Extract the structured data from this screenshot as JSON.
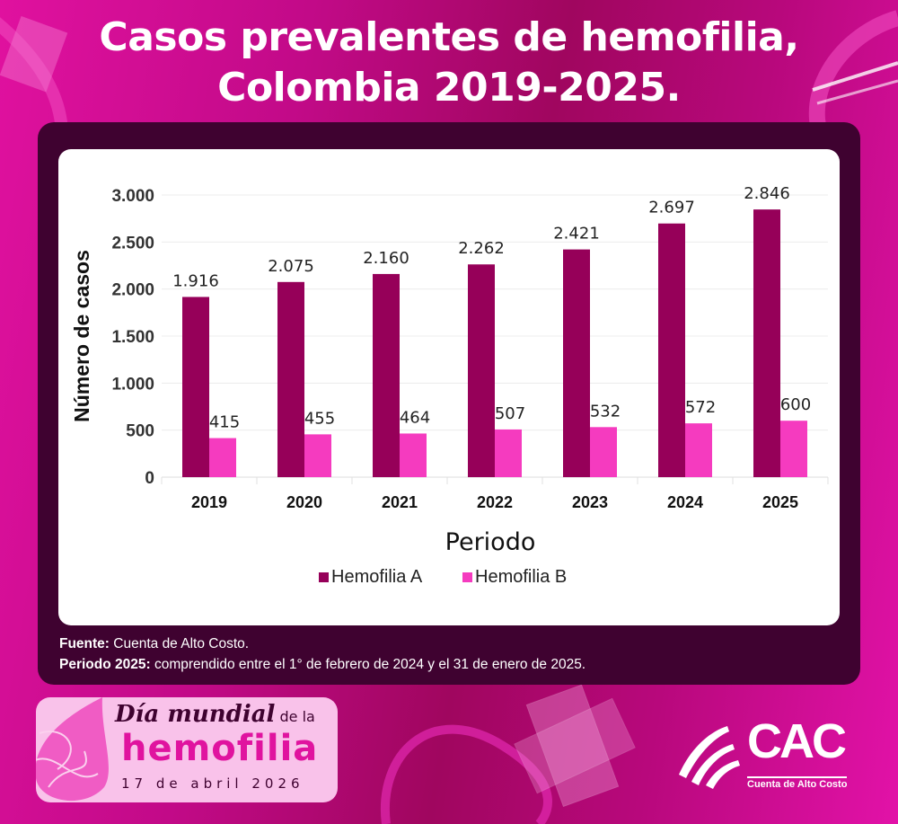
{
  "title_line1": "Casos prevalentes de hemofilia,",
  "title_line2": "Colombia 2019-2025.",
  "colors": {
    "hemofilia_a": "#960059",
    "hemofilia_b": "#f53bbf",
    "frame": "#3f0230"
  },
  "chart_data": {
    "type": "bar",
    "title": "Casos prevalentes de hemofilia, Colombia 2019-2025.",
    "xlabel": "Periodo",
    "ylabel": "Número de casos",
    "categories": [
      "2019",
      "2020",
      "2021",
      "2022",
      "2023",
      "2024",
      "2025"
    ],
    "series": [
      {
        "name": "Hemofilia A",
        "values": [
          1916,
          2075,
          2160,
          2262,
          2421,
          2697,
          2846
        ],
        "labels": [
          "1.916",
          "2.075",
          "2.160",
          "2.262",
          "2.421",
          "2.697",
          "2.846"
        ]
      },
      {
        "name": "Hemofilia B",
        "values": [
          415,
          455,
          464,
          507,
          532,
          572,
          600
        ],
        "labels": [
          "415",
          "455",
          "464",
          "507",
          "532",
          "572",
          "600"
        ]
      }
    ],
    "ylim": [
      0,
      3000
    ],
    "yticks": [
      0,
      500,
      1000,
      1500,
      2000,
      2500,
      3000
    ],
    "ytick_labels": [
      "0",
      "500",
      "1.000",
      "1.500",
      "2.000",
      "2.500",
      "3.000"
    ],
    "grid": true,
    "legend": "bottom-center"
  },
  "notes": {
    "source_label": "Fuente:",
    "source_text": " Cuenta de Alto Costo.",
    "period_label": "Periodo 2025:",
    "period_text": " comprendido entre el 1° de febrero de 2024 y el 31 de enero de 2025."
  },
  "badge": {
    "line1": "Día mundial",
    "line1_small": " de la",
    "line2": "hemofilia",
    "line3": "17 de abril 2026"
  },
  "logo": {
    "text": "CAC",
    "subtitle": "Cuenta de Alto Costo"
  }
}
